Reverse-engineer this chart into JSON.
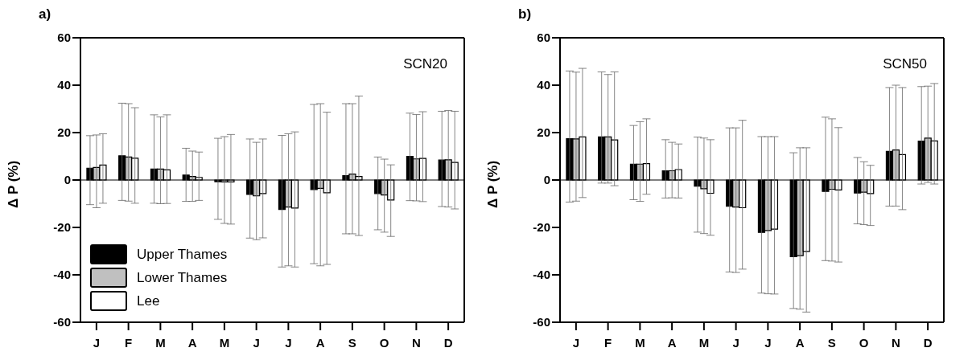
{
  "chart_data": [
    {
      "type": "bar",
      "title": "a)",
      "ylabel": "Δ P (%)",
      "annotations": [
        "SCN20"
      ],
      "categories": [
        "J",
        "F",
        "M",
        "A",
        "M",
        "J",
        "J",
        "A",
        "S",
        "O",
        "N",
        "D"
      ],
      "ylim": [
        -60,
        60
      ],
      "yticks": [
        -60,
        -40,
        -20,
        0,
        20,
        40,
        60
      ],
      "legend": "bottom left",
      "grid": false,
      "ref_lines": [
        {
          "axis": "y",
          "value": 0,
          "color": "#000000"
        }
      ],
      "series": [
        {
          "name": "Upper Thames",
          "color": "#000000",
          "values": [
            5,
            10.2,
            4.6,
            2.1,
            -0.7,
            -6.1,
            -12.4,
            -4,
            1.8,
            -5.7,
            10,
            8.4
          ],
          "errors": [
            [
              -10.4,
              18.7
            ],
            [
              -8.6,
              32.4
            ],
            [
              -9.8,
              27.5
            ],
            [
              -9,
              13.4
            ],
            [
              -16.6,
              17.6
            ],
            [
              -24.5,
              17.3
            ],
            [
              -36.7,
              18.8
            ],
            [
              -35.3,
              31.9
            ],
            [
              -22.7,
              32.2
            ],
            [
              -21,
              9.7
            ],
            [
              -8.7,
              28.2
            ],
            [
              -11.2,
              29
            ]
          ]
        },
        {
          "name": "Lower Thames",
          "color": "#c0c0c0",
          "values": [
            5.3,
            9.7,
            4.6,
            1.5,
            -0.8,
            -6.7,
            -11.4,
            -3.5,
            2.5,
            -6.3,
            8.9,
            8.5
          ],
          "errors": [
            [
              -11.7,
              19
            ],
            [
              -8.9,
              32.2
            ],
            [
              -10,
              26.6
            ],
            [
              -9,
              12.2
            ],
            [
              -18.3,
              18.3
            ],
            [
              -25.2,
              15.9
            ],
            [
              -36.2,
              19.5
            ],
            [
              -36.2,
              32.2
            ],
            [
              -22.7,
              32.2
            ],
            [
              -22,
              8.8
            ],
            [
              -8.8,
              27.6
            ],
            [
              -11.4,
              29.3
            ]
          ]
        },
        {
          "name": "Lee",
          "color": "#ffffff",
          "values": [
            6.3,
            9.2,
            4.3,
            1.1,
            -0.8,
            -5.7,
            -11.8,
            -5.4,
            1.5,
            -8.4,
            9.1,
            7.4
          ],
          "errors": [
            [
              -9.8,
              19.5
            ],
            [
              -9.8,
              30.5
            ],
            [
              -9.9,
              27.5
            ],
            [
              -8.6,
              11.8
            ],
            [
              -18.6,
              19.2
            ],
            [
              -24.4,
              17.3
            ],
            [
              -36.7,
              20.3
            ],
            [
              -35.6,
              28.6
            ],
            [
              -23.4,
              35.4
            ],
            [
              -23.8,
              6.4
            ],
            [
              -9.1,
              28.8
            ],
            [
              -12.2,
              29
            ]
          ]
        }
      ]
    },
    {
      "type": "bar",
      "title": "b)",
      "ylabel": "Δ P (%)",
      "annotations": [
        "SCN50"
      ],
      "categories": [
        "J",
        "F",
        "M",
        "A",
        "M",
        "J",
        "J",
        "A",
        "S",
        "O",
        "N",
        "D"
      ],
      "ylim": [
        -60,
        60
      ],
      "yticks": [
        -60,
        -40,
        -20,
        0,
        20,
        40,
        60
      ],
      "grid": false,
      "ref_lines": [
        {
          "axis": "y",
          "value": 0,
          "color": "#000000"
        }
      ],
      "series": [
        {
          "color": "#000000",
          "values": [
            17.4,
            18.2,
            6.7,
            3.9,
            -2.6,
            -11.1,
            -22.1,
            -32.3,
            -4.8,
            -5.5,
            12.1,
            16.4
          ],
          "errors": [
            [
              -9.3,
              46
            ],
            [
              -1.3,
              45.6
            ],
            [
              -8.3,
              23
            ],
            [
              -7.6,
              17
            ],
            [
              -22,
              18.1
            ],
            [
              -38.8,
              22
            ],
            [
              -47.7,
              18.3
            ],
            [
              -54.2,
              11.5
            ],
            [
              -34,
              26.5
            ],
            [
              -18.5,
              9.5
            ],
            [
              -11,
              39
            ],
            [
              -1.7,
              39.4
            ]
          ]
        },
        {
          "color": "#c0c0c0",
          "values": [
            17.3,
            18.2,
            6.7,
            3.9,
            -3.7,
            -11.4,
            -21.3,
            -31.9,
            -3.9,
            -5.1,
            12.7,
            17.7
          ],
          "errors": [
            [
              -8.9,
              45.5
            ],
            [
              -1.3,
              44.5
            ],
            [
              -9,
              24.6
            ],
            [
              -7.5,
              15.9
            ],
            [
              -22.6,
              17.7
            ],
            [
              -39,
              22
            ],
            [
              -48,
              18.3
            ],
            [
              -54.5,
              13.6
            ],
            [
              -34.2,
              25.8
            ],
            [
              -18.8,
              7.7
            ],
            [
              -11,
              40
            ],
            [
              -1,
              39.6
            ]
          ]
        },
        {
          "color": "#ffffff",
          "values": [
            18.2,
            16.9,
            6.9,
            4.4,
            -5.6,
            -11.7,
            -20.7,
            -30.1,
            -4.2,
            -5.7,
            10.7,
            16.5
          ],
          "errors": [
            [
              -7.4,
              47.1
            ],
            [
              -2.4,
              45.6
            ],
            [
              -6,
              25.8
            ],
            [
              -7.6,
              15.2
            ],
            [
              -23.3,
              17
            ],
            [
              -37.6,
              25.2
            ],
            [
              -48.1,
              18.3
            ],
            [
              -55.7,
              13.6
            ],
            [
              -34.6,
              22.1
            ],
            [
              -19.2,
              6.2
            ],
            [
              -12.5,
              39
            ],
            [
              -1.7,
              40.7
            ]
          ]
        }
      ]
    }
  ]
}
